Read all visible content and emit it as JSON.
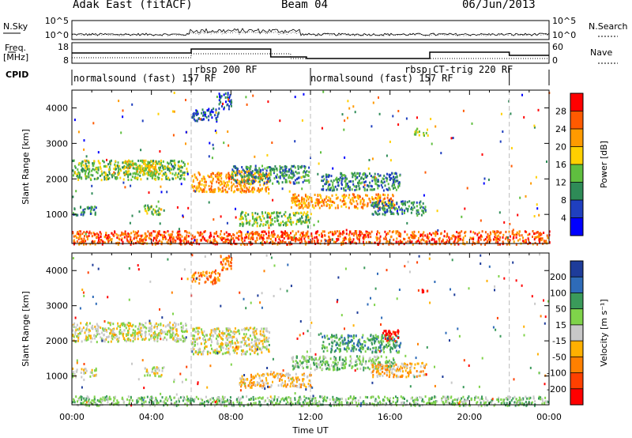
{
  "header": {
    "radar": "Adak East (fitACF)",
    "beam": "Beam 04",
    "date": "06/Jun/2013"
  },
  "noise_panel": {
    "left_label": "N.Sky",
    "right_label": "N.Search",
    "left_ticks": [
      "10^5",
      "10^0"
    ],
    "right_ticks": [
      "10^5",
      "10^0"
    ]
  },
  "freq_panel": {
    "left_label_line1": "Freq.",
    "left_label_line2": "[MHz]",
    "right_label": "Nave",
    "left_ticks": [
      "18",
      "8"
    ],
    "right_ticks": [
      "60",
      "0"
    ]
  },
  "cpid_panel": {
    "label": "CPID",
    "segments": [
      {
        "text": "normalsound (fast) 157 RF",
        "start_hour": 0,
        "end_hour": 6
      },
      {
        "text": "rbsp 200 RF",
        "start_hour": 6,
        "end_hour": 12
      },
      {
        "text": "normalsound (fast) 157 RF",
        "start_hour": 12,
        "end_hour": 18
      },
      {
        "text": "rbsp CT-trig 220 RF",
        "start_hour": 18,
        "end_hour": 22
      }
    ]
  },
  "chart_data": [
    {
      "type": "heatmap",
      "title": "",
      "xlabel": "",
      "ylabel": "Slant Range [km]",
      "xlim": [
        0,
        24
      ],
      "ylim": [
        180,
        4500
      ],
      "yticks": [
        "1000",
        "2000",
        "3000",
        "4000"
      ],
      "colorbar": {
        "label": "Power [dB]",
        "ticks": [
          "4",
          "8",
          "12",
          "16",
          "20",
          "24",
          "28"
        ],
        "colors": [
          "#0000ff",
          "#1f3fbf",
          "#2e8b57",
          "#5fbf3f",
          "#ffd000",
          "#ff9a00",
          "#ff5a00",
          "#ff0000"
        ]
      },
      "echo_regions": [
        {
          "start_hour": 0.0,
          "end_hour": 5.8,
          "range_low_km": 2000,
          "range_high_km": 2550,
          "level": 3
        },
        {
          "start_hour": 2.6,
          "end_hour": 4.4,
          "range_low_km": 2150,
          "range_high_km": 2550,
          "level": 4
        },
        {
          "start_hour": 3.6,
          "end_hour": 4.6,
          "range_low_km": 1020,
          "range_high_km": 1280,
          "level": 3
        },
        {
          "start_hour": 0.0,
          "end_hour": 1.2,
          "range_low_km": 1000,
          "range_high_km": 1250,
          "level": 2
        },
        {
          "start_hour": 6.0,
          "end_hour": 9.9,
          "range_low_km": 1650,
          "range_high_km": 2250,
          "level": 5
        },
        {
          "start_hour": 6.0,
          "end_hour": 7.4,
          "range_low_km": 3650,
          "range_high_km": 4000,
          "level": 1
        },
        {
          "start_hour": 7.3,
          "end_hour": 8.0,
          "range_low_km": 4000,
          "range_high_km": 4450,
          "level": 1
        },
        {
          "start_hour": 8.0,
          "end_hour": 11.9,
          "range_low_km": 1900,
          "range_high_km": 2400,
          "level": 2
        },
        {
          "start_hour": 8.4,
          "end_hour": 12.0,
          "range_low_km": 700,
          "range_high_km": 1100,
          "level": 3
        },
        {
          "start_hour": 11.0,
          "end_hour": 16.2,
          "range_low_km": 1200,
          "range_high_km": 1600,
          "level": 5
        },
        {
          "start_hour": 12.5,
          "end_hour": 16.5,
          "range_low_km": 1700,
          "range_high_km": 2200,
          "level": 2
        },
        {
          "start_hour": 15.0,
          "end_hour": 17.8,
          "range_low_km": 1000,
          "range_high_km": 1400,
          "level": 2
        },
        {
          "start_hour": 17.2,
          "end_hour": 17.9,
          "range_low_km": 3250,
          "range_high_km": 3450,
          "level": 3
        },
        {
          "start_hour": 0.0,
          "end_hour": 24.0,
          "range_low_km": 180,
          "range_high_km": 560,
          "level": 6
        }
      ]
    },
    {
      "type": "heatmap",
      "title": "",
      "xlabel": "Time UT",
      "ylabel": "Slant Range [km]",
      "xlim": [
        0,
        24
      ],
      "ylim": [
        180,
        4500
      ],
      "xticks": [
        "00:00",
        "04:00",
        "08:00",
        "12:00",
        "16:00",
        "20:00",
        "00:00"
      ],
      "yticks": [
        "1000",
        "2000",
        "3000",
        "4000"
      ],
      "colorbar": {
        "label": "Velocity [m s⁻¹]",
        "ticks": [
          "200",
          "100",
          "50",
          "15",
          "-15",
          "-50",
          "-100",
          "-200"
        ],
        "colors": [
          "#1e3c9a",
          "#2e6bb8",
          "#3a9a5a",
          "#7fd34a",
          "#c8c8c8",
          "#ffb000",
          "#ff8000",
          "#ff4000",
          "#ff0000"
        ]
      },
      "echo_regions": [
        {
          "start_hour": 0.0,
          "end_hour": 5.8,
          "range_low_km": 2000,
          "range_high_km": 2550,
          "level": 4
        },
        {
          "start_hour": 3.6,
          "end_hour": 4.6,
          "range_low_km": 1020,
          "range_high_km": 1280,
          "level": 4
        },
        {
          "start_hour": 0.0,
          "end_hour": 1.2,
          "range_low_km": 1000,
          "range_high_km": 1250,
          "level": 4
        },
        {
          "start_hour": 6.0,
          "end_hour": 9.9,
          "range_low_km": 1650,
          "range_high_km": 2400,
          "level": 4
        },
        {
          "start_hour": 6.0,
          "end_hour": 7.4,
          "range_low_km": 3650,
          "range_high_km": 4000,
          "level": 6
        },
        {
          "start_hour": 7.4,
          "end_hour": 8.0,
          "range_low_km": 4000,
          "range_high_km": 4450,
          "level": 6
        },
        {
          "start_hour": 8.4,
          "end_hour": 12.0,
          "range_low_km": 700,
          "range_high_km": 1100,
          "level": 5
        },
        {
          "start_hour": 11.0,
          "end_hour": 16.2,
          "range_low_km": 1200,
          "range_high_km": 1600,
          "level": 3
        },
        {
          "start_hour": 12.5,
          "end_hour": 16.5,
          "range_low_km": 1700,
          "range_high_km": 2200,
          "level": 2
        },
        {
          "start_hour": 15.0,
          "end_hour": 17.8,
          "range_low_km": 1000,
          "range_high_km": 1400,
          "level": 5
        },
        {
          "start_hour": 15.6,
          "end_hour": 16.4,
          "range_low_km": 2000,
          "range_high_km": 2350,
          "level": 8
        },
        {
          "start_hour": 17.3,
          "end_hour": 17.9,
          "range_low_km": 3400,
          "range_high_km": 3500,
          "level": 8
        },
        {
          "start_hour": 0.0,
          "end_hour": 24.0,
          "range_low_km": 180,
          "range_high_km": 450,
          "level": 3
        }
      ]
    }
  ]
}
